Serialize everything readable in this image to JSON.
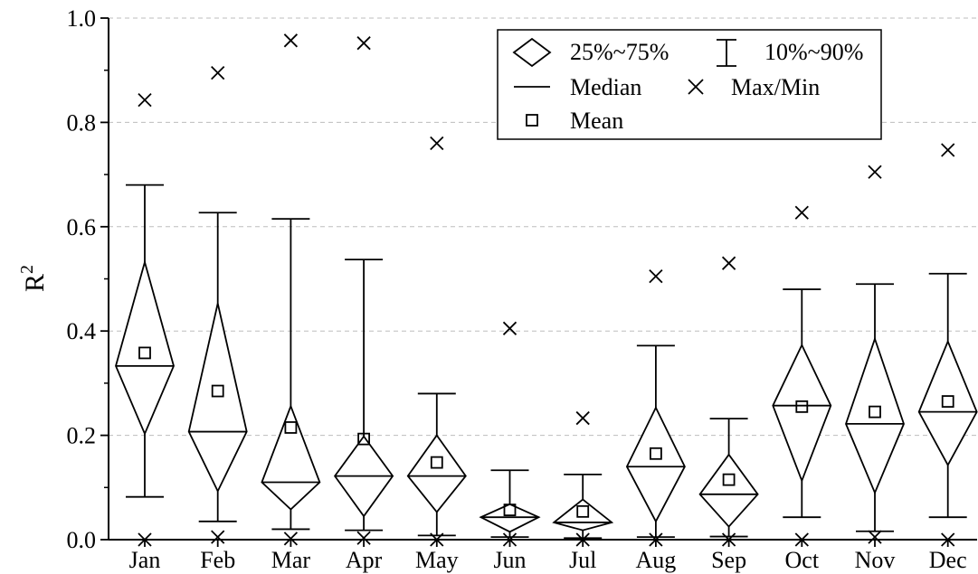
{
  "chart_data": {
    "type": "box",
    "categories": [
      "Jan",
      "Feb",
      "Mar",
      "Apr",
      "May",
      "Jun",
      "Jul",
      "Aug",
      "Sep",
      "Oct",
      "Nov",
      "Dec"
    ],
    "ylabel": "R",
    "ylabel_sup": "2",
    "ylim": [
      0,
      1.0
    ],
    "yticks": [
      "0.0",
      "0.2",
      "0.4",
      "0.6",
      "0.8",
      "1.0"
    ],
    "grid": "horizontal-dashed",
    "legend": {
      "placement": "top-right",
      "entries": {
        "iqr": "25%~75%",
        "whisker": "10%~90%",
        "median": "Median",
        "maxmin": "Max/Min",
        "mean": "Mean"
      }
    },
    "series": [
      {
        "p10": 0.082,
        "q1": 0.203,
        "median": 0.333,
        "q3": 0.532,
        "p90": 0.68,
        "mean": 0.358,
        "max": 0.843,
        "min": 0.0
      },
      {
        "p10": 0.035,
        "q1": 0.093,
        "median": 0.207,
        "q3": 0.453,
        "p90": 0.627,
        "mean": 0.285,
        "max": 0.895,
        "min": 0.005
      },
      {
        "p10": 0.02,
        "q1": 0.058,
        "median": 0.11,
        "q3": 0.256,
        "p90": 0.615,
        "mean": 0.215,
        "max": 0.957,
        "min": 0.002
      },
      {
        "p10": 0.018,
        "q1": 0.045,
        "median": 0.122,
        "q3": 0.198,
        "p90": 0.537,
        "mean": 0.193,
        "max": 0.952,
        "min": 0.003
      },
      {
        "p10": 0.008,
        "q1": 0.053,
        "median": 0.122,
        "q3": 0.2,
        "p90": 0.28,
        "mean": 0.148,
        "max": 0.76,
        "min": 0.0
      },
      {
        "p10": 0.005,
        "q1": 0.015,
        "median": 0.043,
        "q3": 0.068,
        "p90": 0.133,
        "mean": 0.057,
        "max": 0.405,
        "min": 0.0
      },
      {
        "p10": 0.003,
        "q1": 0.018,
        "median": 0.033,
        "q3": 0.077,
        "p90": 0.125,
        "mean": 0.054,
        "max": 0.233,
        "min": 0.0
      },
      {
        "p10": 0.005,
        "q1": 0.035,
        "median": 0.14,
        "q3": 0.253,
        "p90": 0.372,
        "mean": 0.165,
        "max": 0.505,
        "min": 0.0
      },
      {
        "p10": 0.006,
        "q1": 0.025,
        "median": 0.087,
        "q3": 0.163,
        "p90": 0.232,
        "mean": 0.115,
        "max": 0.53,
        "min": 0.0
      },
      {
        "p10": 0.043,
        "q1": 0.113,
        "median": 0.257,
        "q3": 0.373,
        "p90": 0.48,
        "mean": 0.255,
        "max": 0.627,
        "min": 0.0
      },
      {
        "p10": 0.016,
        "q1": 0.09,
        "median": 0.222,
        "q3": 0.385,
        "p90": 0.49,
        "mean": 0.245,
        "max": 0.705,
        "min": 0.005
      },
      {
        "p10": 0.043,
        "q1": 0.143,
        "median": 0.245,
        "q3": 0.38,
        "p90": 0.51,
        "mean": 0.265,
        "max": 0.747,
        "min": 0.0
      }
    ]
  }
}
